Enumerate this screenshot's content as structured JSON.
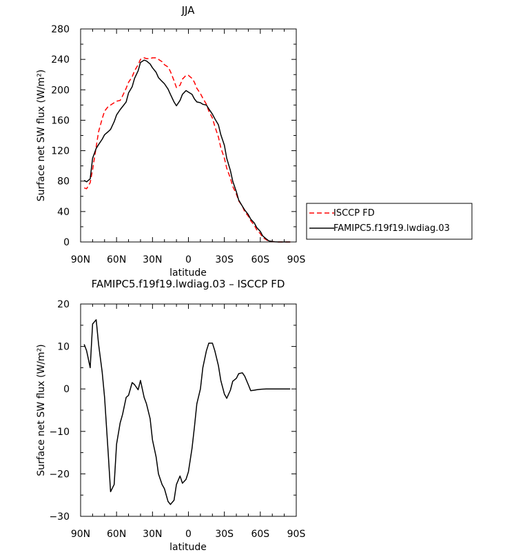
{
  "chart_data": [
    {
      "type": "line",
      "title": "JJA",
      "xlabel": "latitude",
      "ylabel": "Surface net SW flux (W/m²)",
      "xlim": [
        90,
        -90
      ],
      "ylim": [
        0,
        280
      ],
      "x_ticks": [
        90,
        60,
        30,
        0,
        -30,
        -60,
        -90
      ],
      "x_tick_labels": [
        "90N",
        "60N",
        "30N",
        "0",
        "30S",
        "60S",
        "90S"
      ],
      "y_ticks": [
        0,
        40,
        80,
        120,
        160,
        200,
        240,
        280
      ],
      "y_tick_labels": [
        "0",
        "40",
        "80",
        "120",
        "160",
        "200",
        "240",
        "280"
      ],
      "grid": false,
      "legend_position": "right",
      "series": [
        {
          "name": "ISCCP FD",
          "color": "#ff0000",
          "dash": "dashed",
          "points": [
            [
              87,
              71
            ],
            [
              85,
              70
            ],
            [
              82,
              78
            ],
            [
              80,
              95
            ],
            [
              77,
              125
            ],
            [
              75,
              145
            ],
            [
              72,
              162
            ],
            [
              70,
              172
            ],
            [
              67,
              178
            ],
            [
              65,
              180
            ],
            [
              62,
              183
            ],
            [
              60,
              185
            ],
            [
              57,
              186
            ],
            [
              55,
              192
            ],
            [
              52,
              202
            ],
            [
              50,
              210
            ],
            [
              47,
              217
            ],
            [
              45,
              225
            ],
            [
              42,
              233
            ],
            [
              40,
              240
            ],
            [
              37,
              242
            ],
            [
              35,
              241
            ],
            [
              32,
              241
            ],
            [
              30,
              242
            ],
            [
              27,
              242
            ],
            [
              25,
              240
            ],
            [
              22,
              237
            ],
            [
              20,
              233
            ],
            [
              17,
              230
            ],
            [
              15,
              224
            ],
            [
              12,
              212
            ],
            [
              10,
              203
            ],
            [
              7,
              206
            ],
            [
              5,
              214
            ],
            [
              2,
              219
            ],
            [
              0,
              219
            ],
            [
              -3,
              215
            ],
            [
              -5,
              210
            ],
            [
              -7,
              202
            ],
            [
              -10,
              195
            ],
            [
              -12,
              189
            ],
            [
              -15,
              181
            ],
            [
              -17,
              172
            ],
            [
              -20,
              163
            ],
            [
              -22,
              152
            ],
            [
              -25,
              138
            ],
            [
              -27,
              124
            ],
            [
              -30,
              110
            ],
            [
              -32,
              97
            ],
            [
              -35,
              84
            ],
            [
              -37,
              73
            ],
            [
              -40,
              63
            ],
            [
              -42,
              54
            ],
            [
              -45,
              47
            ],
            [
              -47,
              40
            ],
            [
              -50,
              34
            ],
            [
              -52,
              28
            ],
            [
              -55,
              22
            ],
            [
              -57,
              16
            ],
            [
              -60,
              11
            ],
            [
              -62,
              6
            ],
            [
              -65,
              3
            ],
            [
              -67,
              1
            ],
            [
              -70,
              0.5
            ],
            [
              -72,
              0.2
            ],
            [
              -75,
              0
            ],
            [
              -77,
              0
            ],
            [
              -80,
              0
            ],
            [
              -85,
              0
            ]
          ]
        },
        {
          "name": "FAMIPC5.f19f19.lwdiag.03",
          "color": "#000000",
          "dash": "solid",
          "points": [
            [
              87,
              81
            ],
            [
              85,
              79
            ],
            [
              82,
              83
            ],
            [
              80,
              110
            ],
            [
              77,
              123
            ],
            [
              75,
              128
            ],
            [
              72,
              135
            ],
            [
              70,
              141
            ],
            [
              67,
              145
            ],
            [
              65,
              148
            ],
            [
              62,
              158
            ],
            [
              60,
              167
            ],
            [
              57,
              174
            ],
            [
              55,
              178
            ],
            [
              52,
              184
            ],
            [
              50,
              196
            ],
            [
              47,
              204
            ],
            [
              45,
              215
            ],
            [
              42,
              225
            ],
            [
              40,
              236
            ],
            [
              37,
              239
            ],
            [
              35,
              238
            ],
            [
              32,
              234
            ],
            [
              30,
              229
            ],
            [
              27,
              223
            ],
            [
              25,
              216
            ],
            [
              22,
              211
            ],
            [
              20,
              208
            ],
            [
              17,
              201
            ],
            [
              15,
              194
            ],
            [
              12,
              184
            ],
            [
              10,
              179
            ],
            [
              7,
              186
            ],
            [
              5,
              194
            ],
            [
              2,
              199
            ],
            [
              0,
              197
            ],
            [
              -3,
              194
            ],
            [
              -5,
              188
            ],
            [
              -7,
              184
            ],
            [
              -10,
              183
            ],
            [
              -12,
              181
            ],
            [
              -15,
              180
            ],
            [
              -17,
              175
            ],
            [
              -20,
              168
            ],
            [
              -22,
              162
            ],
            [
              -25,
              154
            ],
            [
              -27,
              141
            ],
            [
              -30,
              127
            ],
            [
              -32,
              110
            ],
            [
              -35,
              94
            ],
            [
              -37,
              80
            ],
            [
              -40,
              66
            ],
            [
              -42,
              55
            ],
            [
              -45,
              47
            ],
            [
              -47,
              42
            ],
            [
              -50,
              36
            ],
            [
              -52,
              30
            ],
            [
              -55,
              25
            ],
            [
              -57,
              19
            ],
            [
              -60,
              14
            ],
            [
              -62,
              8
            ],
            [
              -65,
              4
            ],
            [
              -67,
              1.5
            ],
            [
              -70,
              0.5
            ],
            [
              -72,
              0.2
            ],
            [
              -75,
              0
            ],
            [
              -77,
              0
            ],
            [
              -80,
              0
            ],
            [
              -85,
              0
            ]
          ]
        }
      ]
    },
    {
      "type": "line",
      "title": "FAMIPC5.f19f19.lwdiag.03 – ISCCP FD",
      "xlabel": "latitude",
      "ylabel": "Surface net SW flux (W/m²)",
      "xlim": [
        90,
        -90
      ],
      "ylim": [
        -30,
        20
      ],
      "x_ticks": [
        90,
        60,
        30,
        0,
        -30,
        -60,
        -90
      ],
      "x_tick_labels": [
        "90N",
        "60N",
        "30N",
        "0",
        "30S",
        "60S",
        "90S"
      ],
      "y_ticks": [
        -30,
        -20,
        -10,
        0,
        10,
        20
      ],
      "y_tick_labels": [
        "−30",
        "−20",
        "−10",
        "0",
        "10",
        "20"
      ],
      "grid": false,
      "series": [
        {
          "color": "#000000",
          "dash": "solid",
          "points": [
            [
              87,
              10.5
            ],
            [
              85,
              9
            ],
            [
              82,
              5
            ],
            [
              80,
              15.3
            ],
            [
              77,
              16.3
            ],
            [
              75,
              10.5
            ],
            [
              72,
              4
            ],
            [
              70,
              -2
            ],
            [
              67,
              -15
            ],
            [
              65,
              -24.2
            ],
            [
              62,
              -22.5
            ],
            [
              60,
              -13
            ],
            [
              57,
              -8
            ],
            [
              55,
              -6
            ],
            [
              52,
              -2
            ],
            [
              50,
              -1.5
            ],
            [
              47,
              1.5
            ],
            [
              45,
              1
            ],
            [
              42,
              -0.2
            ],
            [
              40,
              2
            ],
            [
              37,
              -2
            ],
            [
              35,
              -3.5
            ],
            [
              32,
              -7
            ],
            [
              30,
              -12
            ],
            [
              27,
              -16
            ],
            [
              25,
              -20
            ],
            [
              22,
              -22.5
            ],
            [
              20,
              -23.5
            ],
            [
              17,
              -26.5
            ],
            [
              15,
              -27.2
            ],
            [
              12,
              -26.2
            ],
            [
              10,
              -22.5
            ],
            [
              7,
              -20.5
            ],
            [
              5,
              -22.2
            ],
            [
              2,
              -21.3
            ],
            [
              0,
              -19.5
            ],
            [
              -3,
              -14
            ],
            [
              -5,
              -9
            ],
            [
              -7,
              -3.5
            ],
            [
              -10,
              0
            ],
            [
              -12,
              5
            ],
            [
              -15,
              9
            ],
            [
              -17,
              10.8
            ],
            [
              -20,
              10.8
            ],
            [
              -22,
              9
            ],
            [
              -25,
              5.5
            ],
            [
              -27,
              2
            ],
            [
              -30,
              -1.2
            ],
            [
              -32,
              -2.2
            ],
            [
              -35,
              -0.3
            ],
            [
              -37,
              1.8
            ],
            [
              -40,
              2.5
            ],
            [
              -42,
              3.6
            ],
            [
              -45,
              3.8
            ],
            [
              -47,
              3
            ],
            [
              -50,
              1
            ],
            [
              -52,
              -0.4
            ],
            [
              -55,
              -0.3
            ],
            [
              -57,
              -0.2
            ],
            [
              -60,
              -0.1
            ],
            [
              -62,
              -0.05
            ],
            [
              -65,
              0
            ],
            [
              -70,
              0
            ],
            [
              -75,
              0
            ],
            [
              -80,
              0
            ],
            [
              -85,
              0
            ]
          ]
        }
      ]
    }
  ]
}
